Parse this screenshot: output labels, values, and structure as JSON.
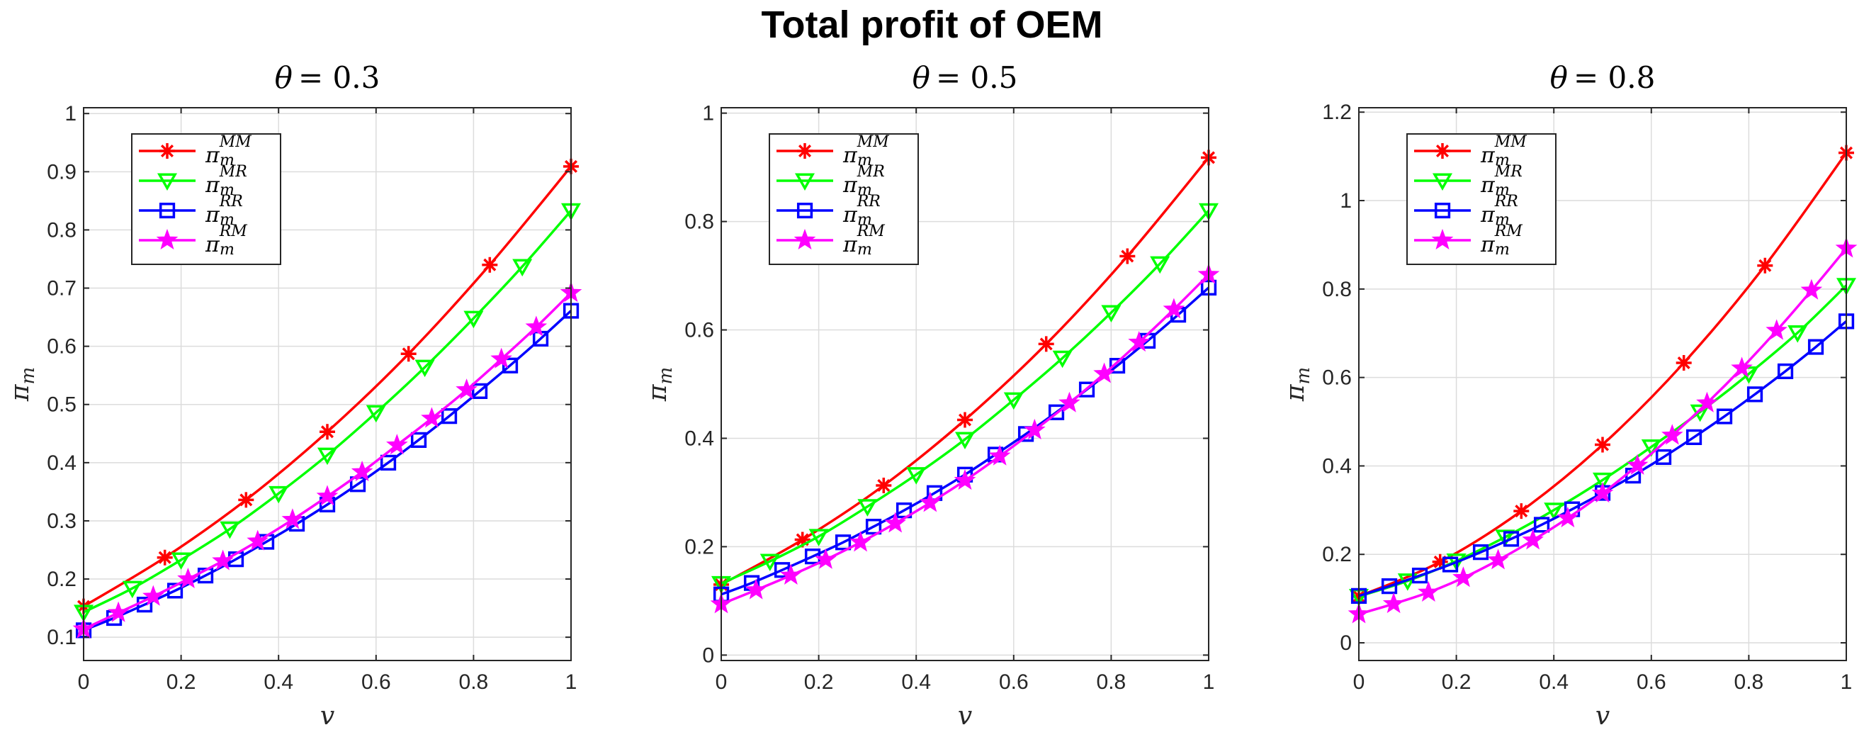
{
  "figure": {
    "title": "Total profit of OEM"
  },
  "chart_data": [
    {
      "type": "line",
      "title": "θ = 0.3",
      "title_prefix": "θ",
      "title_value": "= 0.3",
      "xlabel": "v",
      "ylabel": "π_m",
      "xlim": [
        0,
        1
      ],
      "ylim": [
        0.06,
        1.01
      ],
      "xticks": [
        0,
        0.2,
        0.4,
        0.6,
        0.8,
        1
      ],
      "xtick_labels": [
        "0",
        "0.2",
        "0.4",
        "0.6",
        "0.8",
        "1"
      ],
      "yticks": [
        0.1,
        0.2,
        0.3,
        0.4,
        0.5,
        0.6,
        0.7,
        0.8,
        0.9,
        1
      ],
      "ytick_labels": [
        "0.1",
        "0.2",
        "0.3",
        "0.4",
        "0.5",
        "0.6",
        "0.7",
        "0.8",
        "0.9",
        "1"
      ],
      "grid": true,
      "legend_position": "top-left",
      "series": [
        {
          "name": "π_m^MM",
          "base": "π",
          "sub": "m",
          "sup": "MM",
          "color": "#ff0000",
          "marker": "asterisk",
          "x": [
            0,
            0.1667,
            0.3333,
            0.5,
            0.6667,
            0.8333,
            1
          ],
          "y": [
            0.153,
            0.237,
            0.336,
            0.453,
            0.587,
            0.74,
            0.909
          ]
        },
        {
          "name": "π_m^MR",
          "base": "π",
          "sub": "m",
          "sup": "MR",
          "color": "#00ff00",
          "marker": "triangle-down",
          "x": [
            0,
            0.1,
            0.2,
            0.3,
            0.4,
            0.5,
            0.6,
            0.7,
            0.8,
            0.9,
            1
          ],
          "y": [
            0.143,
            0.184,
            0.233,
            0.286,
            0.347,
            0.413,
            0.486,
            0.564,
            0.648,
            0.737,
            0.833
          ]
        },
        {
          "name": "π_m^RR",
          "base": "π",
          "sub": "m",
          "sup": "RR",
          "color": "#0000ff",
          "marker": "square",
          "x": [
            0,
            0.0625,
            0.125,
            0.1875,
            0.25,
            0.3125,
            0.375,
            0.4375,
            0.5,
            0.5625,
            0.625,
            0.6875,
            0.75,
            0.8125,
            0.875,
            0.9375,
            1
          ],
          "y": [
            0.112,
            0.133,
            0.156,
            0.18,
            0.206,
            0.234,
            0.264,
            0.295,
            0.328,
            0.363,
            0.4,
            0.439,
            0.48,
            0.523,
            0.567,
            0.613,
            0.661
          ]
        },
        {
          "name": "π_m^RM",
          "base": "π",
          "sub": "m",
          "sup": "RM",
          "color": "#ff00ff",
          "marker": "star",
          "x": [
            0,
            0.0714,
            0.1429,
            0.2143,
            0.2857,
            0.3571,
            0.4286,
            0.5,
            0.5714,
            0.6429,
            0.7143,
            0.7857,
            0.8571,
            0.9286,
            1
          ],
          "y": [
            0.114,
            0.142,
            0.17,
            0.2,
            0.231,
            0.265,
            0.302,
            0.342,
            0.384,
            0.43,
            0.476,
            0.525,
            0.578,
            0.633,
            0.692
          ]
        }
      ]
    },
    {
      "type": "line",
      "title": "θ = 0.5",
      "title_prefix": "θ",
      "title_value": "= 0.5",
      "xlabel": "v",
      "ylabel": "π_m",
      "xlim": [
        0,
        1
      ],
      "ylim": [
        -0.01,
        1.01
      ],
      "xticks": [
        0,
        0.2,
        0.4,
        0.6,
        0.8,
        1
      ],
      "xtick_labels": [
        "0",
        "0.2",
        "0.4",
        "0.6",
        "0.8",
        "1"
      ],
      "yticks": [
        0,
        0.2,
        0.4,
        0.6,
        0.8,
        1
      ],
      "ytick_labels": [
        "0",
        "0.2",
        "0.4",
        "0.6",
        "0.8",
        "1"
      ],
      "grid": true,
      "legend_position": "top-left",
      "series": [
        {
          "name": "π_m^MM",
          "base": "π",
          "sub": "m",
          "sup": "MM",
          "color": "#ff0000",
          "marker": "asterisk",
          "x": [
            0,
            0.1667,
            0.3333,
            0.5,
            0.6667,
            0.8333,
            1
          ],
          "y": [
            0.13,
            0.213,
            0.313,
            0.434,
            0.574,
            0.736,
            0.918
          ]
        },
        {
          "name": "π_m^MR",
          "base": "π",
          "sub": "m",
          "sup": "MR",
          "color": "#00ff00",
          "marker": "triangle-down",
          "x": [
            0,
            0.1,
            0.2,
            0.3,
            0.4,
            0.5,
            0.6,
            0.7,
            0.8,
            0.9,
            1
          ],
          "y": [
            0.132,
            0.173,
            0.219,
            0.274,
            0.333,
            0.398,
            0.471,
            0.548,
            0.632,
            0.722,
            0.82
          ]
        },
        {
          "name": "π_m^RR",
          "base": "π",
          "sub": "m",
          "sup": "RR",
          "color": "#0000ff",
          "marker": "square",
          "x": [
            0,
            0.0625,
            0.125,
            0.1875,
            0.25,
            0.3125,
            0.375,
            0.4375,
            0.5,
            0.5625,
            0.625,
            0.6875,
            0.75,
            0.8125,
            0.875,
            0.9375,
            1
          ],
          "y": [
            0.112,
            0.133,
            0.157,
            0.182,
            0.208,
            0.237,
            0.267,
            0.299,
            0.333,
            0.37,
            0.408,
            0.448,
            0.49,
            0.534,
            0.58,
            0.628,
            0.678
          ]
        },
        {
          "name": "π_m^RM",
          "base": "π",
          "sub": "m",
          "sup": "RM",
          "color": "#ff00ff",
          "marker": "star",
          "x": [
            0,
            0.0714,
            0.1429,
            0.2143,
            0.2857,
            0.3571,
            0.4286,
            0.5,
            0.5714,
            0.6429,
            0.7143,
            0.7857,
            0.8571,
            0.9286,
            1
          ],
          "y": [
            0.094,
            0.12,
            0.147,
            0.176,
            0.208,
            0.243,
            0.281,
            0.322,
            0.367,
            0.415,
            0.465,
            0.519,
            0.577,
            0.638,
            0.702
          ]
        }
      ]
    },
    {
      "type": "line",
      "title": "θ = 0.8",
      "title_prefix": "θ",
      "title_value": "= 0.8",
      "xlabel": "v",
      "ylabel": "π_m",
      "xlim": [
        0,
        1
      ],
      "ylim": [
        -0.04,
        1.21
      ],
      "xticks": [
        0,
        0.2,
        0.4,
        0.6,
        0.8,
        1
      ],
      "xtick_labels": [
        "0",
        "0.2",
        "0.4",
        "0.6",
        "0.8",
        "1"
      ],
      "yticks": [
        0,
        0.2,
        0.4,
        0.6,
        0.8,
        1,
        1.2
      ],
      "ytick_labels": [
        "0",
        "0.2",
        "0.4",
        "0.6",
        "0.8",
        "1",
        "1.2"
      ],
      "grid": true,
      "legend_position": "top-left",
      "series": [
        {
          "name": "π_m^MM",
          "base": "π",
          "sub": "m",
          "sup": "MM",
          "color": "#ff0000",
          "marker": "asterisk",
          "x": [
            0,
            0.1667,
            0.3333,
            0.5,
            0.6667,
            0.8333,
            1
          ],
          "y": [
            0.105,
            0.183,
            0.298,
            0.448,
            0.633,
            0.853,
            1.108
          ]
        },
        {
          "name": "π_m^MR",
          "base": "π",
          "sub": "m",
          "sup": "MR",
          "color": "#00ff00",
          "marker": "triangle-down",
          "x": [
            0,
            0.1,
            0.2,
            0.3,
            0.4,
            0.5,
            0.6,
            0.7,
            0.8,
            0.9,
            1
          ],
          "y": [
            0.105,
            0.14,
            0.185,
            0.239,
            0.3,
            0.368,
            0.443,
            0.522,
            0.608,
            0.701,
            0.808
          ]
        },
        {
          "name": "π_m^RR",
          "base": "π",
          "sub": "m",
          "sup": "RR",
          "color": "#0000ff",
          "marker": "square",
          "x": [
            0,
            0.0625,
            0.125,
            0.1875,
            0.25,
            0.3125,
            0.375,
            0.4375,
            0.5,
            0.5625,
            0.625,
            0.6875,
            0.75,
            0.8125,
            0.875,
            0.9375,
            1
          ],
          "y": [
            0.106,
            0.128,
            0.152,
            0.177,
            0.205,
            0.235,
            0.267,
            0.302,
            0.339,
            0.378,
            0.42,
            0.465,
            0.512,
            0.562,
            0.614,
            0.669,
            0.727
          ]
        },
        {
          "name": "π_m^RM",
          "base": "π",
          "sub": "m",
          "sup": "RM",
          "color": "#ff00ff",
          "marker": "star",
          "x": [
            0,
            0.0714,
            0.1429,
            0.2143,
            0.2857,
            0.3571,
            0.4286,
            0.5,
            0.5714,
            0.6429,
            0.7143,
            0.7857,
            0.8571,
            0.9286,
            1
          ],
          "y": [
            0.065,
            0.088,
            0.114,
            0.147,
            0.187,
            0.232,
            0.282,
            0.338,
            0.401,
            0.469,
            0.542,
            0.621,
            0.706,
            0.797,
            0.892
          ]
        }
      ]
    }
  ]
}
